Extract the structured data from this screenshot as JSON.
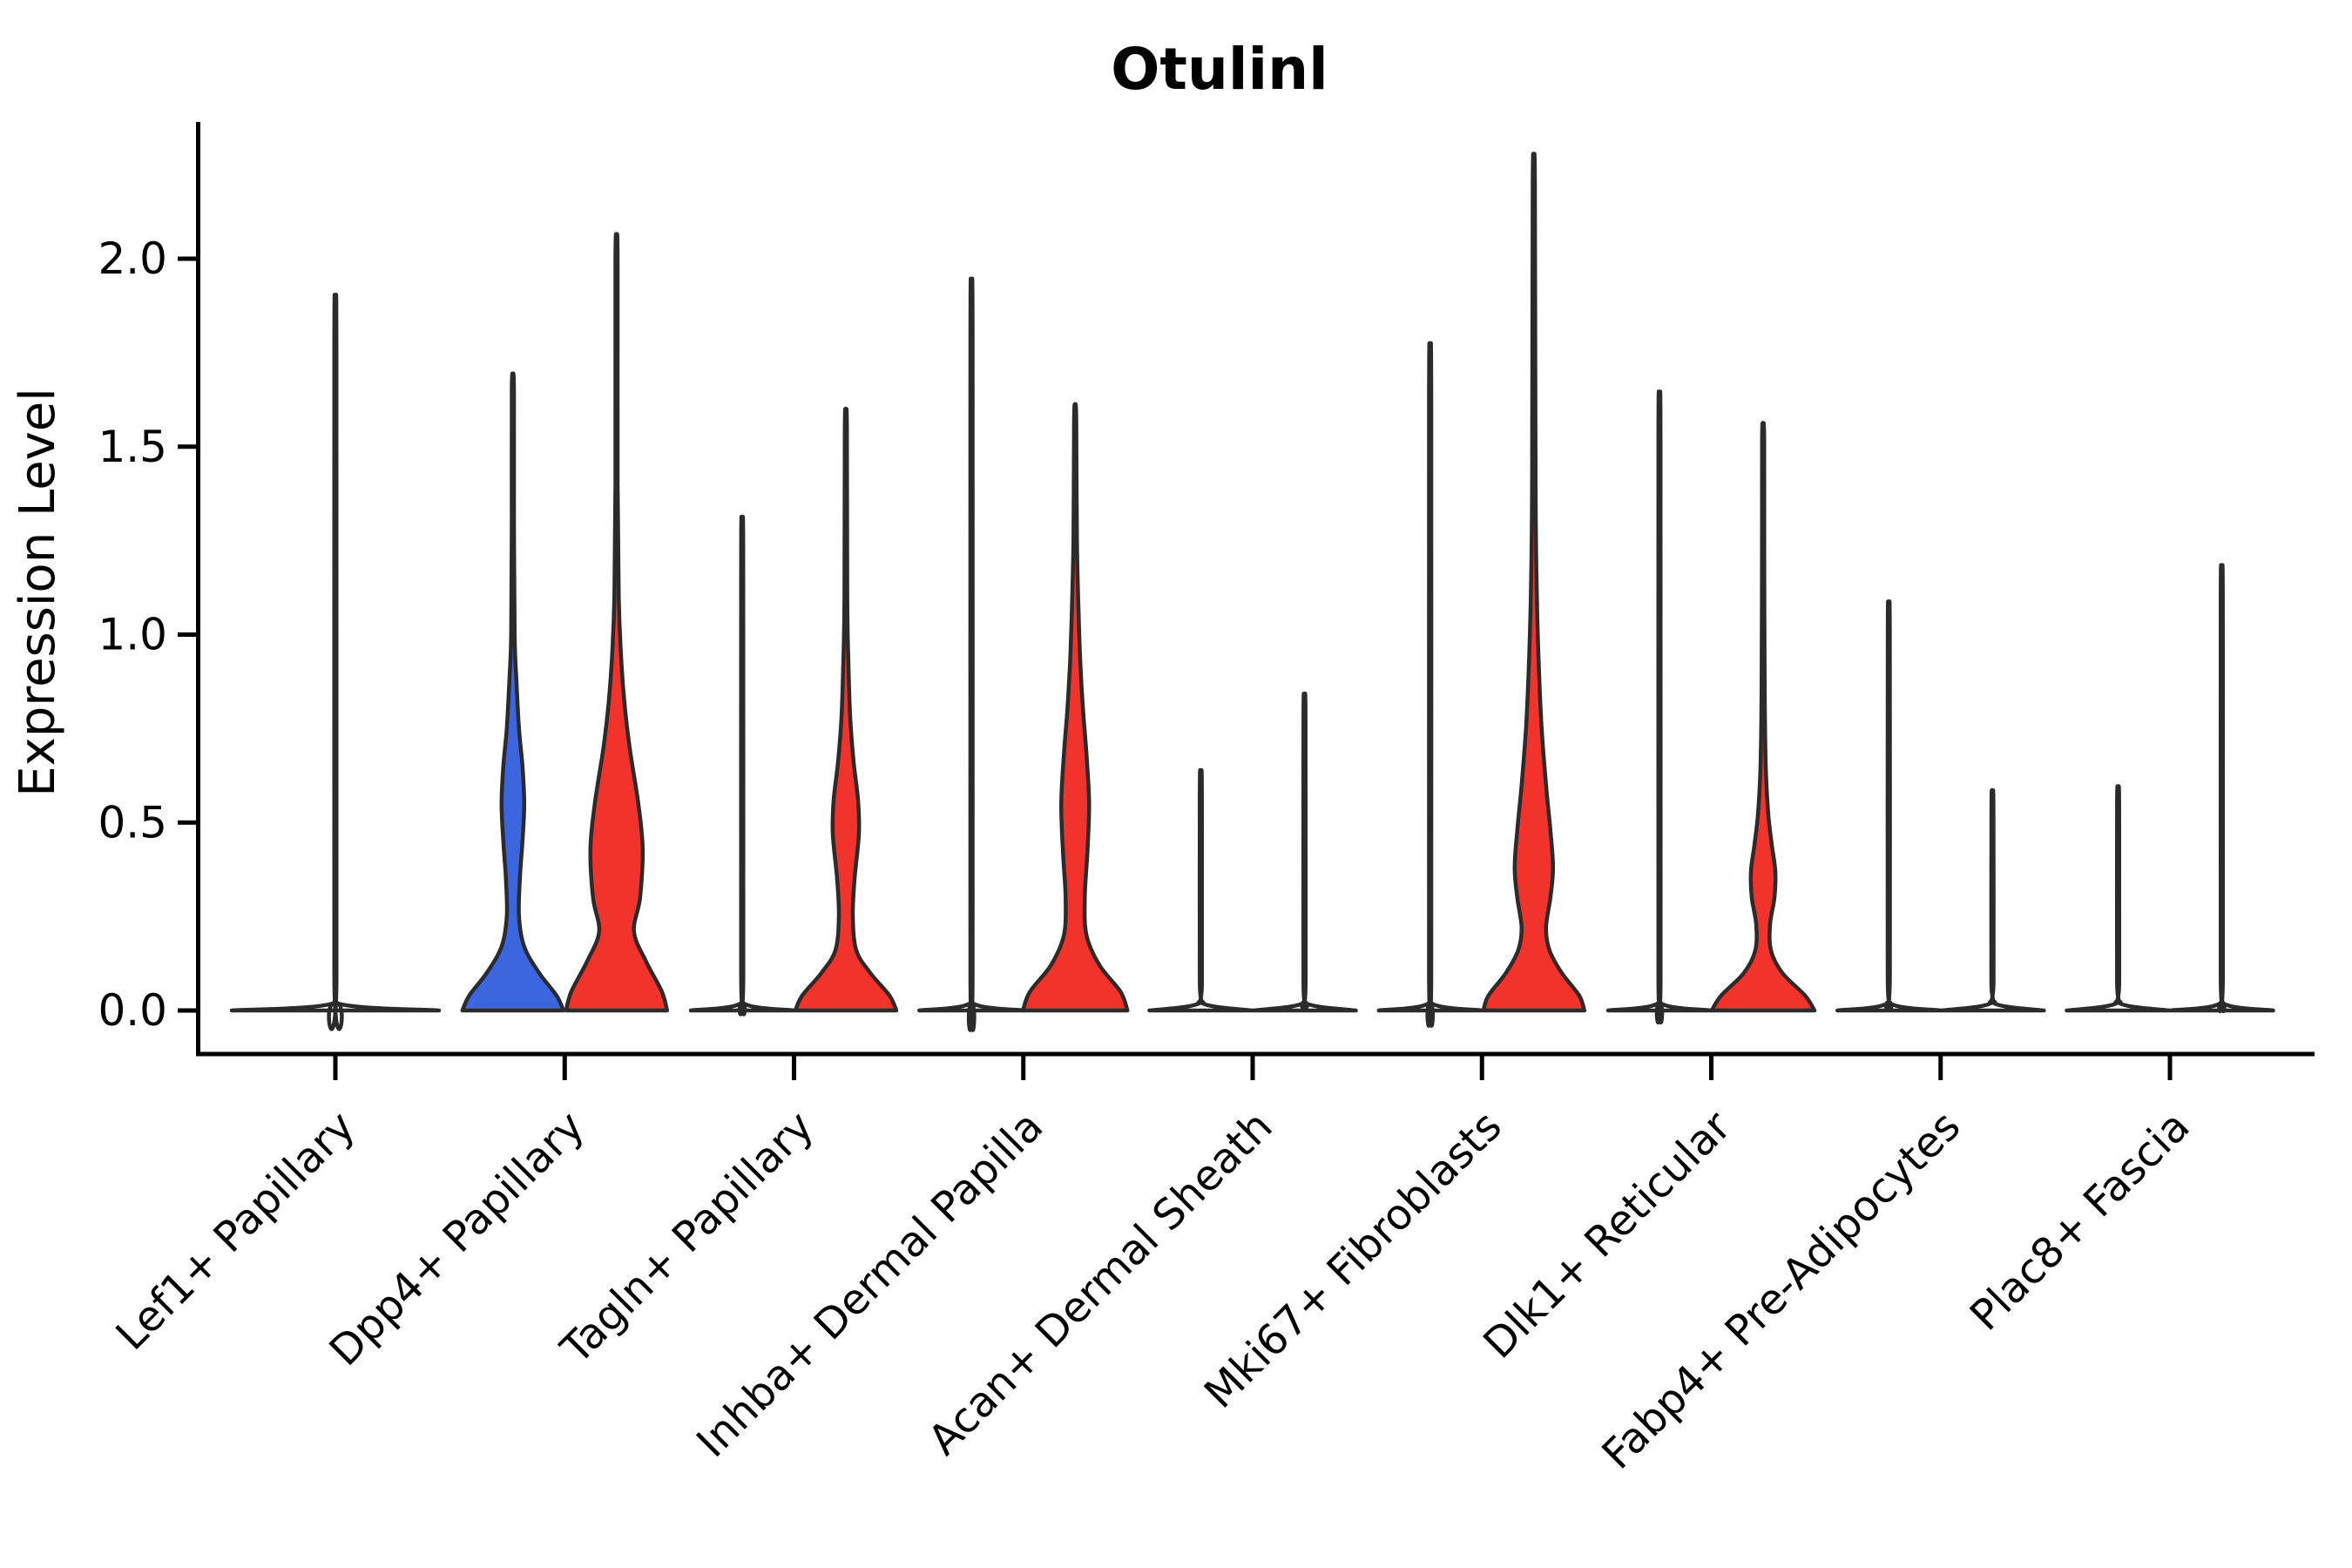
{
  "figure": {
    "title": "Otulinl",
    "ylabel": "Expression Level"
  },
  "chart_data": {
    "type": "violin",
    "title": "Otulinl",
    "xlabel": "",
    "ylabel": "Expression Level",
    "ylim": [
      -0.1,
      2.35
    ],
    "grid": false,
    "legend": "none",
    "yticks": [
      {
        "label": "0.0",
        "value": 0.0
      },
      {
        "label": "0.5",
        "value": 0.5
      },
      {
        "label": "1.0",
        "value": 1.0
      },
      {
        "label": "1.5",
        "value": 1.5
      },
      {
        "label": "2.0",
        "value": 2.0
      }
    ],
    "categories": [
      "Lef1+ Papillary",
      "Dpp4+ Papillary",
      "Tagln+ Papillary",
      "Inhba+ Dermal Papilla",
      "Acan+ Dermal Sheath",
      "Mki67+ Fibroblasts",
      "Dlk1+ Reticular",
      "Fabp4+ Pre-Adipocytes",
      "Plac8+ Fascia"
    ],
    "colors": {
      "blue": "#3C66DE",
      "red": "#F2332B",
      "outline": "#2B2B2B",
      "flat_fill": "#ffffff"
    },
    "violins": [
      {
        "category": "Lef1+ Papillary",
        "cat_index": 0,
        "position": "center",
        "fill_key": "flat_fill",
        "max_expression": 1.8,
        "shape": "flat-with-spike",
        "profile": [
          [
            0,
            119
          ],
          [
            0.02,
            1.3
          ],
          [
            0.1,
            1.25
          ],
          [
            1.77,
            1.2
          ],
          [
            1.8,
            0
          ]
        ]
      },
      {
        "category": "Dpp4+ Papillary",
        "cat_index": 1,
        "position": "left",
        "fill_key": "blue",
        "max_expression": 1.69,
        "shape": "bulged",
        "profile": [
          [
            0,
            58
          ],
          [
            0.04,
            50
          ],
          [
            0.1,
            30
          ],
          [
            0.17,
            13
          ],
          [
            0.25,
            7
          ],
          [
            0.35,
            8
          ],
          [
            0.45,
            11
          ],
          [
            0.55,
            13
          ],
          [
            0.65,
            11
          ],
          [
            0.75,
            7
          ],
          [
            0.88,
            4
          ],
          [
            1.0,
            2
          ],
          [
            1.3,
            1.3
          ],
          [
            1.65,
            1.2
          ],
          [
            1.69,
            0
          ]
        ]
      },
      {
        "category": "Dpp4+ Papillary",
        "cat_index": 1,
        "position": "right",
        "fill_key": "red",
        "max_expression": 2.05,
        "shape": "bulged",
        "profile": [
          [
            0,
            58
          ],
          [
            0.05,
            52
          ],
          [
            0.13,
            34
          ],
          [
            0.21,
            20
          ],
          [
            0.3,
            27
          ],
          [
            0.43,
            30
          ],
          [
            0.55,
            25
          ],
          [
            0.7,
            15
          ],
          [
            0.82,
            9
          ],
          [
            0.95,
            5
          ],
          [
            1.1,
            2.5
          ],
          [
            1.4,
            1.3
          ],
          [
            2.0,
            1.2
          ],
          [
            2.05,
            0
          ]
        ]
      },
      {
        "category": "Tagln+ Papillary",
        "cat_index": 2,
        "position": "left",
        "fill_key": "flat_fill",
        "max_expression": 1.25,
        "shape": "flat-with-spike",
        "profile": [
          [
            0,
            59
          ],
          [
            0.02,
            1.3
          ],
          [
            0.1,
            1.25
          ],
          [
            1.22,
            1.2
          ],
          [
            1.25,
            0
          ]
        ]
      },
      {
        "category": "Tagln+ Papillary",
        "cat_index": 2,
        "position": "right",
        "fill_key": "red",
        "max_expression": 1.59,
        "shape": "bulged",
        "profile": [
          [
            0,
            58
          ],
          [
            0.04,
            50
          ],
          [
            0.1,
            28
          ],
          [
            0.16,
            12
          ],
          [
            0.25,
            8
          ],
          [
            0.35,
            10
          ],
          [
            0.47,
            15
          ],
          [
            0.56,
            14
          ],
          [
            0.66,
            9
          ],
          [
            0.78,
            5
          ],
          [
            0.92,
            3
          ],
          [
            1.1,
            1.6
          ],
          [
            1.55,
            1.2
          ],
          [
            1.59,
            0
          ]
        ]
      },
      {
        "category": "Inhba+ Dermal Papilla",
        "cat_index": 3,
        "position": "left",
        "fill_key": "flat_fill",
        "max_expression": 1.84,
        "shape": "flat-with-spike",
        "profile": [
          [
            0,
            60
          ],
          [
            0.02,
            1.3
          ],
          [
            0.1,
            1.25
          ],
          [
            1.81,
            1.2
          ],
          [
            1.84,
            0
          ]
        ]
      },
      {
        "category": "Inhba+ Dermal Papilla",
        "cat_index": 3,
        "position": "right",
        "fill_key": "red",
        "max_expression": 1.61,
        "shape": "bulged",
        "profile": [
          [
            0,
            60
          ],
          [
            0.05,
            52
          ],
          [
            0.12,
            28
          ],
          [
            0.2,
            13
          ],
          [
            0.3,
            11
          ],
          [
            0.42,
            14
          ],
          [
            0.55,
            16
          ],
          [
            0.68,
            13
          ],
          [
            0.8,
            9
          ],
          [
            0.92,
            6
          ],
          [
            1.05,
            4
          ],
          [
            1.25,
            2
          ],
          [
            1.57,
            1.2
          ],
          [
            1.61,
            0
          ]
        ]
      },
      {
        "category": "Acan+ Dermal Sheath",
        "cat_index": 4,
        "position": "left",
        "fill_key": "flat_fill",
        "max_expression": 0.62,
        "shape": "flat-with-spike",
        "profile": [
          [
            0,
            59
          ],
          [
            0.02,
            1.3
          ],
          [
            0.08,
            1.25
          ],
          [
            0.59,
            1.2
          ],
          [
            0.62,
            0
          ]
        ]
      },
      {
        "category": "Acan+ Dermal Sheath",
        "cat_index": 4,
        "position": "right",
        "fill_key": "flat_fill",
        "max_expression": 0.81,
        "shape": "flat-with-spike",
        "profile": [
          [
            0,
            59
          ],
          [
            0.02,
            1.3
          ],
          [
            0.08,
            1.25
          ],
          [
            0.78,
            1.2
          ],
          [
            0.81,
            0
          ]
        ]
      },
      {
        "category": "Mki67+ Fibroblasts",
        "cat_index": 5,
        "position": "left",
        "fill_key": "flat_fill",
        "max_expression": 1.68,
        "shape": "flat-with-spike",
        "profile": [
          [
            0,
            59
          ],
          [
            0.02,
            1.3
          ],
          [
            0.1,
            1.25
          ],
          [
            1.65,
            1.2
          ],
          [
            1.68,
            0
          ]
        ]
      },
      {
        "category": "Mki67+ Fibroblasts",
        "cat_index": 5,
        "position": "right",
        "fill_key": "red",
        "max_expression": 2.25,
        "shape": "bulged",
        "profile": [
          [
            0,
            58
          ],
          [
            0.04,
            52
          ],
          [
            0.1,
            32
          ],
          [
            0.16,
            18
          ],
          [
            0.22,
            14
          ],
          [
            0.3,
            19
          ],
          [
            0.38,
            22
          ],
          [
            0.48,
            19
          ],
          [
            0.6,
            14
          ],
          [
            0.75,
            9
          ],
          [
            0.9,
            6
          ],
          [
            1.1,
            3.5
          ],
          [
            1.4,
            2
          ],
          [
            2.2,
            1.2
          ],
          [
            2.25,
            0
          ]
        ]
      },
      {
        "category": "Dlk1+ Reticular",
        "cat_index": 6,
        "position": "left",
        "fill_key": "flat_fill",
        "max_expression": 1.56,
        "shape": "flat-with-spike",
        "profile": [
          [
            0,
            59
          ],
          [
            0.02,
            1.3
          ],
          [
            0.1,
            1.25
          ],
          [
            1.53,
            1.2
          ],
          [
            1.56,
            0
          ]
        ]
      },
      {
        "category": "Dlk1+ Reticular",
        "cat_index": 6,
        "position": "right",
        "fill_key": "red",
        "max_expression": 1.56,
        "shape": "bulged",
        "profile": [
          [
            0,
            59
          ],
          [
            0.04,
            48
          ],
          [
            0.1,
            22
          ],
          [
            0.16,
            9
          ],
          [
            0.23,
            8
          ],
          [
            0.3,
            13
          ],
          [
            0.37,
            14
          ],
          [
            0.44,
            10
          ],
          [
            0.52,
            6
          ],
          [
            0.65,
            3
          ],
          [
            0.85,
            1.8
          ],
          [
            1.2,
            1.3
          ],
          [
            1.52,
            1.2
          ],
          [
            1.56,
            0
          ]
        ]
      },
      {
        "category": "Fabp4+ Pre-Adipocytes",
        "cat_index": 7,
        "position": "left",
        "fill_key": "flat_fill",
        "max_expression": 1.04,
        "shape": "flat-with-spike",
        "profile": [
          [
            0,
            59
          ],
          [
            0.02,
            1.3
          ],
          [
            0.1,
            1.25
          ],
          [
            1.01,
            1.2
          ],
          [
            1.04,
            0
          ]
        ]
      },
      {
        "category": "Fabp4+ Pre-Adipocytes",
        "cat_index": 7,
        "position": "right",
        "fill_key": "flat_fill",
        "max_expression": 0.57,
        "shape": "flat-with-spike",
        "profile": [
          [
            0,
            59
          ],
          [
            0.02,
            1.3
          ],
          [
            0.08,
            1.25
          ],
          [
            0.54,
            1.2
          ],
          [
            0.57,
            0
          ]
        ]
      },
      {
        "category": "Plac8+ Fascia",
        "cat_index": 8,
        "position": "left",
        "fill_key": "flat_fill",
        "max_expression": 0.58,
        "shape": "flat-with-spike",
        "profile": [
          [
            0,
            59
          ],
          [
            0.02,
            1.3
          ],
          [
            0.08,
            1.25
          ],
          [
            0.55,
            1.2
          ],
          [
            0.58,
            0
          ]
        ]
      },
      {
        "category": "Plac8+ Fascia",
        "cat_index": 8,
        "position": "right",
        "fill_key": "flat_fill",
        "max_expression": 1.13,
        "shape": "flat-with-spike",
        "profile": [
          [
            0,
            59
          ],
          [
            0.02,
            1.3
          ],
          [
            0.1,
            1.25
          ],
          [
            1.1,
            1.2
          ],
          [
            1.13,
            0
          ]
        ]
      }
    ]
  }
}
